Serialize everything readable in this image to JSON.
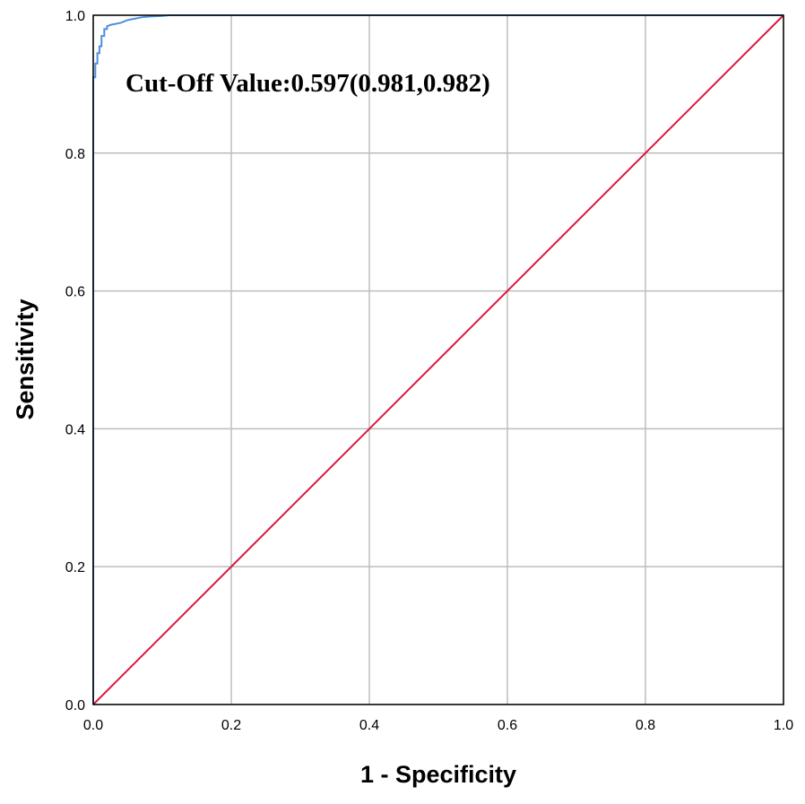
{
  "chart_data": {
    "type": "line",
    "title": "",
    "xlabel": "1 - Specificity",
    "ylabel": "Sensitivity",
    "xlim": [
      0.0,
      1.0
    ],
    "ylim": [
      0.0,
      1.0
    ],
    "x_ticks": [
      "0.0",
      "0.2",
      "0.4",
      "0.6",
      "0.8",
      "1.0"
    ],
    "y_ticks": [
      "0.0",
      "0.2",
      "0.4",
      "0.6",
      "0.8",
      "1.0"
    ],
    "grid": true,
    "annotation": "Cut-Off Value:0.597(0.981,0.982)",
    "colors": {
      "roc": "#4f8fdc",
      "reference": "#d81b3f",
      "grid": "#bdbdbd",
      "frame": "#000000"
    },
    "series": [
      {
        "color": "#4f8fdc",
        "x": [
          0.0,
          0.0,
          0.003,
          0.003,
          0.006,
          0.006,
          0.009,
          0.009,
          0.012,
          0.012,
          0.016,
          0.016,
          0.02,
          0.02,
          0.025,
          0.03,
          0.04,
          0.05,
          0.06,
          0.07,
          0.08,
          0.1,
          0.11,
          1.0
        ],
        "y": [
          0.0,
          0.91,
          0.91,
          0.93,
          0.93,
          0.945,
          0.945,
          0.955,
          0.955,
          0.97,
          0.97,
          0.98,
          0.98,
          0.984,
          0.986,
          0.987,
          0.989,
          0.993,
          0.995,
          0.997,
          0.998,
          0.999,
          1.0,
          1.0
        ]
      },
      {
        "color": "#d81b3f",
        "x": [
          0.0,
          1.0
        ],
        "y": [
          0.0,
          1.0
        ]
      }
    ]
  }
}
